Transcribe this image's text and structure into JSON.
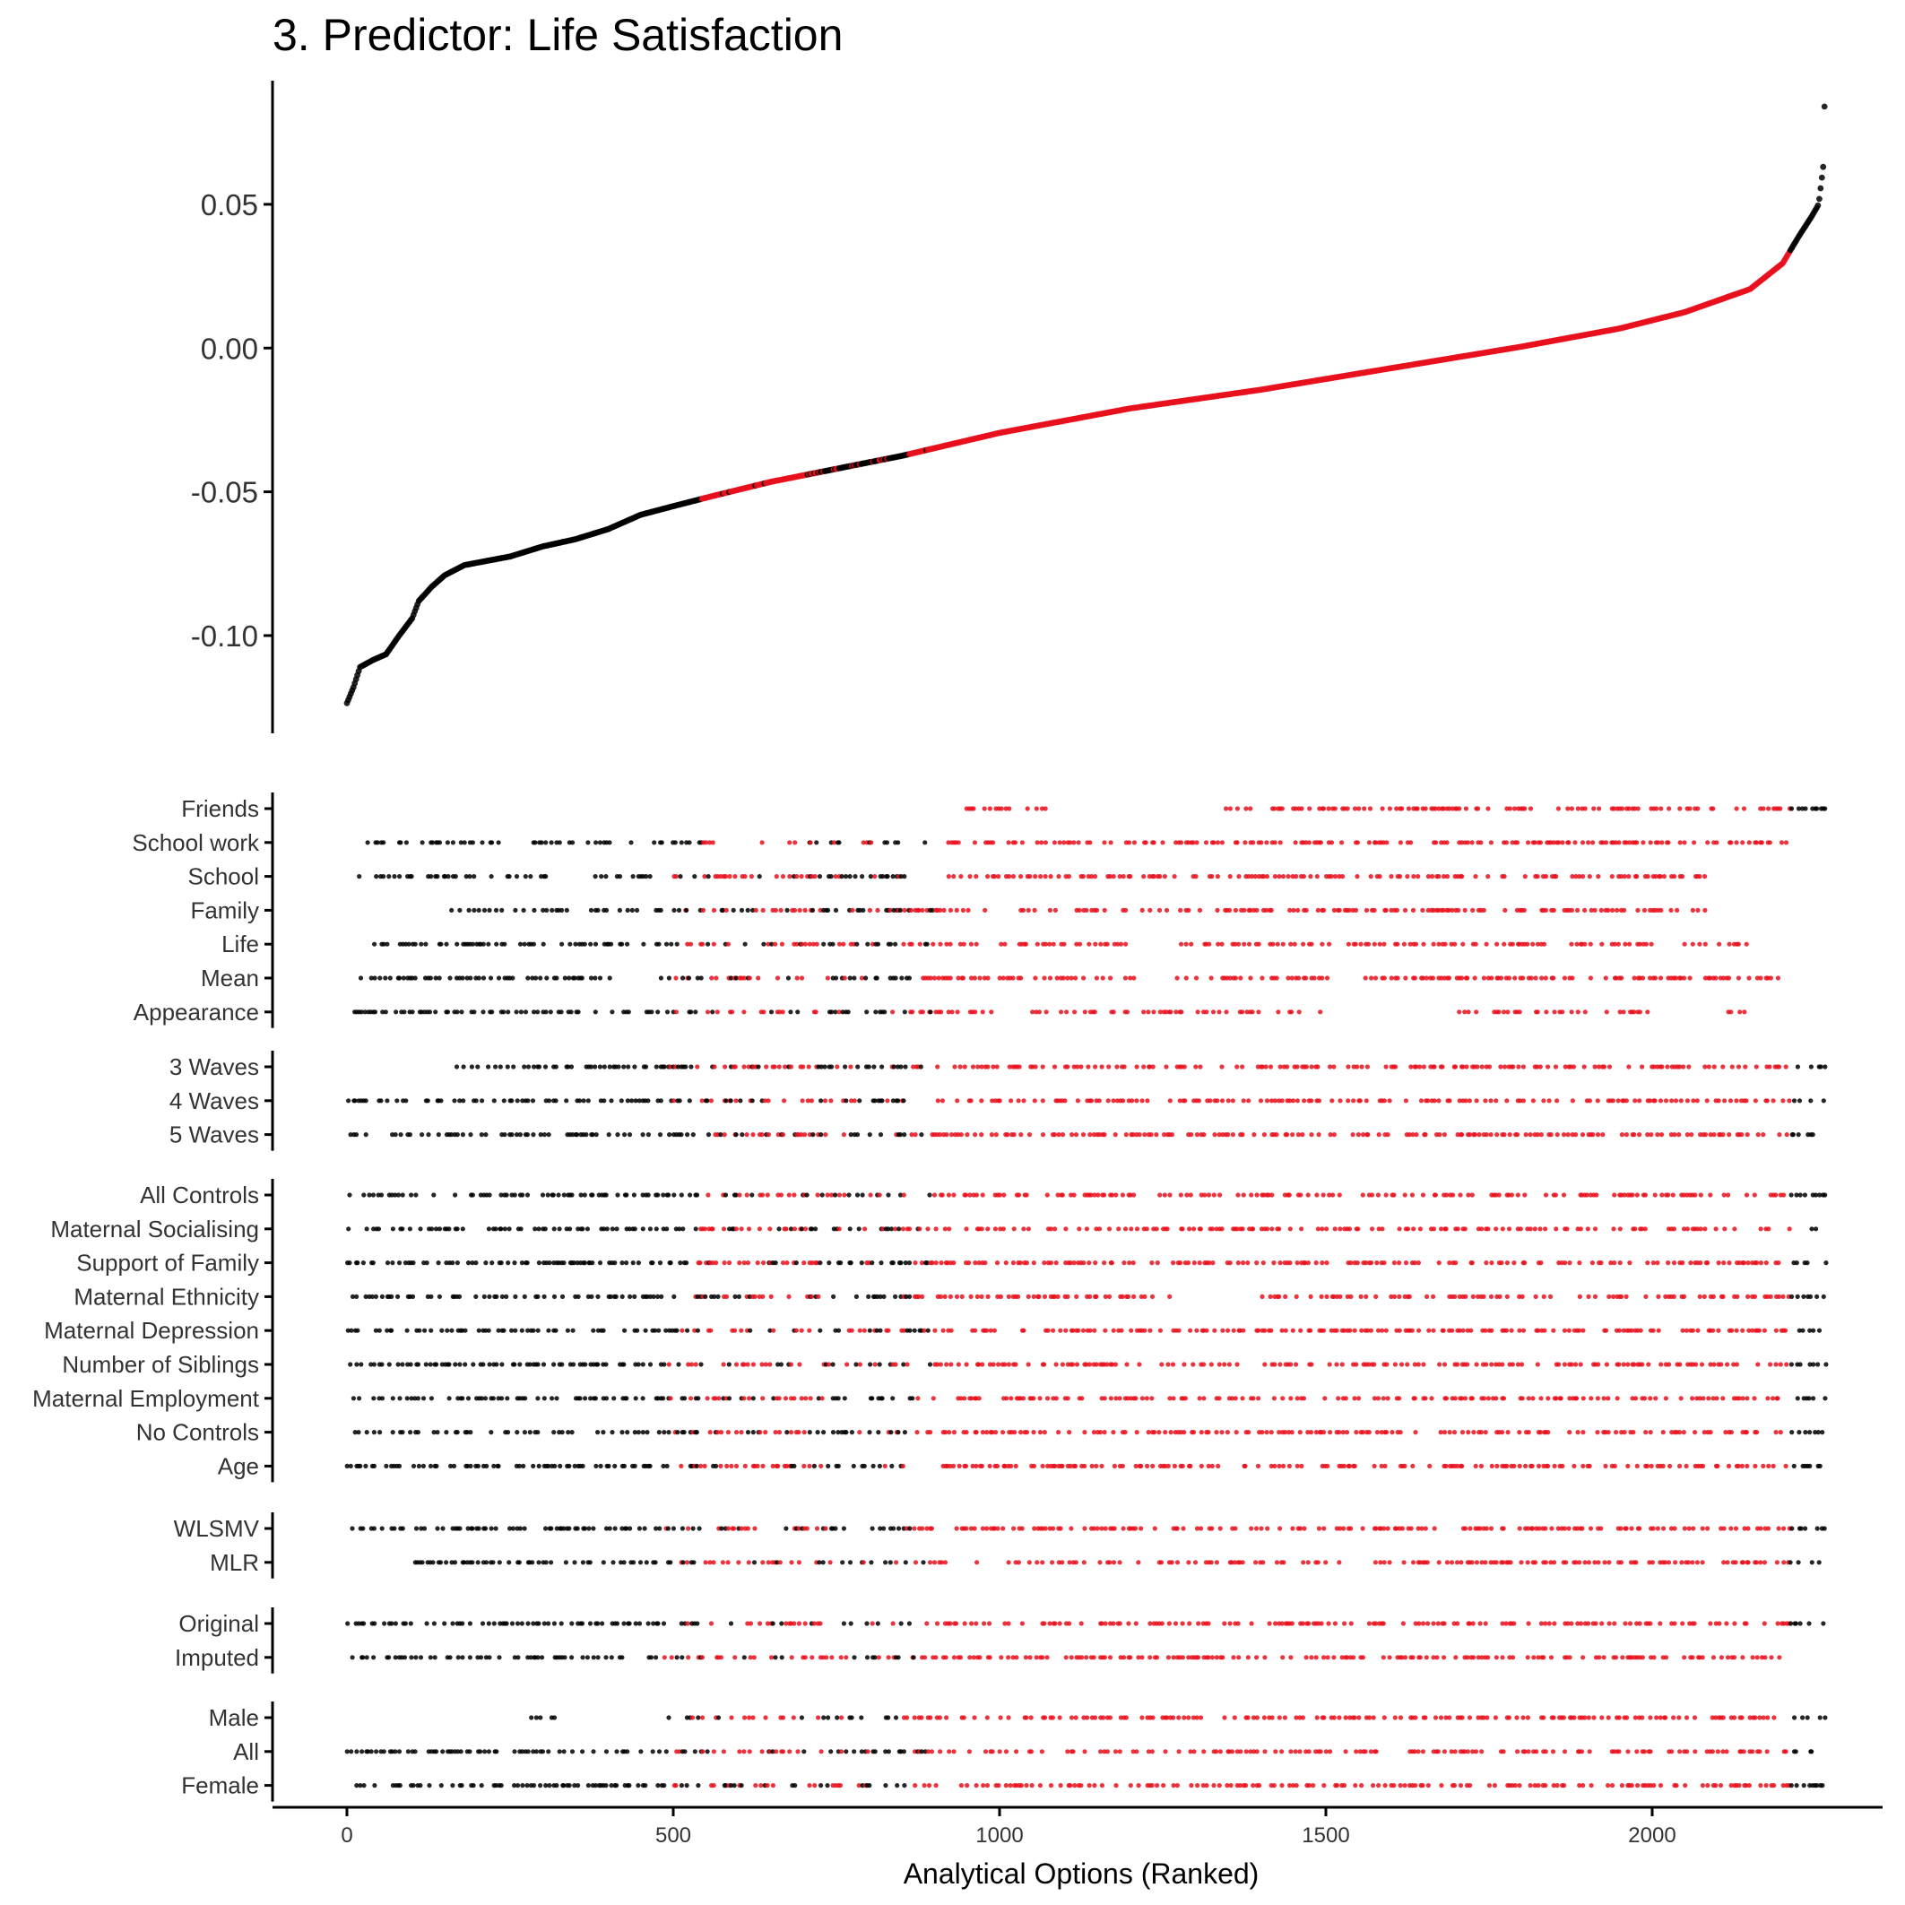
{
  "chart_data": {
    "type": "scatter",
    "title": "3. Predictor: Life Satisfaction",
    "xlabel": "Analytical Options (Ranked)",
    "ylabel": "",
    "x_ticks": [
      "0",
      "500",
      "1000",
      "1500",
      "2000"
    ],
    "xlim": [
      -110,
      2330
    ],
    "n_options": 2264,
    "colors": {
      "significant": "#e8101c",
      "not_significant": "#000000"
    },
    "grid": false,
    "legend": "none",
    "effect_panel": {
      "ylim": [
        -0.134,
        0.093
      ],
      "y_ticks": [
        "0.05",
        "0.00",
        "-0.05",
        "-0.10"
      ],
      "curve_knots": [
        [
          0,
          -0.1235
        ],
        [
          10,
          -0.118
        ],
        [
          20,
          -0.111
        ],
        [
          40,
          -0.1085
        ],
        [
          60,
          -0.1065
        ],
        [
          80,
          -0.1
        ],
        [
          100,
          -0.094
        ],
        [
          110,
          -0.088
        ],
        [
          130,
          -0.083
        ],
        [
          150,
          -0.079
        ],
        [
          180,
          -0.0755
        ],
        [
          250,
          -0.0725
        ],
        [
          300,
          -0.069
        ],
        [
          350,
          -0.0665
        ],
        [
          400,
          -0.063
        ],
        [
          450,
          -0.058
        ],
        [
          500,
          -0.055
        ],
        [
          560,
          -0.0515
        ],
        [
          650,
          -0.0465
        ],
        [
          750,
          -0.042
        ],
        [
          850,
          -0.0375
        ],
        [
          1000,
          -0.0295
        ],
        [
          1200,
          -0.021
        ],
        [
          1400,
          -0.0145
        ],
        [
          1600,
          -0.007
        ],
        [
          1800,
          0.0005
        ],
        [
          1950,
          0.0068
        ],
        [
          2050,
          0.0125
        ],
        [
          2150,
          0.0205
        ],
        [
          2200,
          0.0295
        ],
        [
          2225,
          0.039
        ],
        [
          2245,
          0.046
        ],
        [
          2255,
          0.05
        ],
        [
          2262,
          0.063
        ],
        [
          2264,
          0.084
        ]
      ],
      "significance_runs": [
        {
          "from": 0,
          "to": 540,
          "significant": false
        },
        {
          "from": 540,
          "to": 720,
          "significant": true
        },
        {
          "from": 720,
          "to": 860,
          "significant": false
        },
        {
          "from": 860,
          "to": 2210,
          "significant": true
        },
        {
          "from": 2210,
          "to": 2264,
          "significant": false
        }
      ]
    },
    "spec_groups": [
      {
        "labels": [
          "Friends",
          "School work",
          "School",
          "Family",
          "Life",
          "Mean",
          "Appearance"
        ],
        "ranges": [
          [
            [
              660,
              662
            ],
            [
              940,
              1080
            ],
            [
              1340,
              2264
            ]
          ],
          [
            [
              30,
              240
            ],
            [
              280,
              400
            ],
            [
              430,
              560
            ],
            [
              630,
              850
            ],
            [
              880,
              2210
            ]
          ],
          [
            [
              10,
              200
            ],
            [
              220,
              320
            ],
            [
              380,
              860
            ],
            [
              920,
              2080
            ]
          ],
          [
            [
              160,
              980
            ],
            [
              1020,
              2080
            ]
          ],
          [
            [
              40,
              1200
            ],
            [
              1260,
              2000
            ],
            [
              2040,
              2150
            ]
          ],
          [
            [
              0,
              400
            ],
            [
              480,
              1500
            ],
            [
              1560,
              2200
            ]
          ],
          [
            [
              10,
              990
            ],
            [
              1050,
              1500
            ],
            [
              1700,
              2000
            ],
            [
              2100,
              2140
            ]
          ]
        ]
      },
      {
        "labels": [
          "3 Waves",
          "4 Waves",
          "5 Waves"
        ],
        "ranges": [
          [
            [
              150,
              2264
            ]
          ],
          [
            [
              0,
              2264
            ]
          ],
          [
            [
              0,
              2264
            ]
          ]
        ]
      },
      {
        "labels": [
          "All Controls",
          "Maternal Socialising",
          "Support of Family",
          "Maternal Ethnicity",
          "Maternal Depression",
          "Number of Siblings",
          "Maternal Employment",
          "No Controls",
          "Age"
        ],
        "ranges": [
          [
            [
              0,
              2264
            ]
          ],
          [
            [
              0,
              2264
            ]
          ],
          [
            [
              0,
              2264
            ]
          ],
          [
            [
              0,
              1280
            ],
            [
              1380,
              2264
            ]
          ],
          [
            [
              0,
              2264
            ]
          ],
          [
            [
              0,
              2264
            ]
          ],
          [
            [
              0,
              2264
            ]
          ],
          [
            [
              0,
              2264
            ]
          ],
          [
            [
              0,
              2264
            ]
          ]
        ]
      },
      {
        "labels": [
          "WLSMV",
          "MLR"
        ],
        "ranges": [
          [
            [
              0,
              2264
            ]
          ],
          [
            [
              95,
              2264
            ]
          ]
        ]
      },
      {
        "labels": [
          "Original",
          "Imputed"
        ],
        "ranges": [
          [
            [
              0,
              2264
            ]
          ],
          [
            [
              0,
              2195
            ]
          ]
        ]
      },
      {
        "labels": [
          "Male",
          "All",
          "Female"
        ],
        "ranges": [
          [
            [
              280,
              320
            ],
            [
              480,
              2264
            ]
          ],
          [
            [
              0,
              2250
            ]
          ],
          [
            [
              0,
              2264
            ]
          ]
        ]
      }
    ]
  }
}
